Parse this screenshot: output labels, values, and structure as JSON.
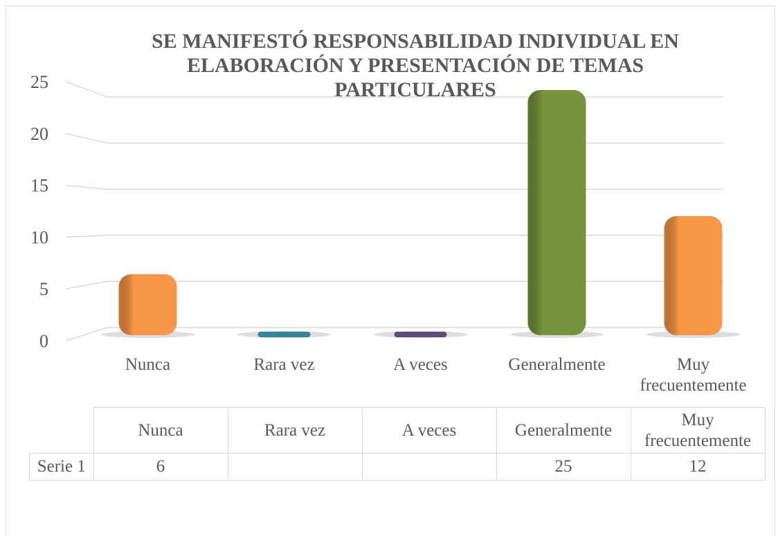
{
  "chart_data": {
    "type": "bar",
    "title": "SE MANIFESTÓ RESPONSABILIDAD INDIVIDUAL EN ELABORACIÓN Y PRESENTACIÓN DE TEMAS PARTICULARES",
    "categories": [
      "Nunca",
      "Rara vez",
      "A veces",
      "Generalmente",
      "Muy frecuentemente"
    ],
    "series": [
      {
        "name": "Serie 1",
        "values": [
          6,
          null,
          null,
          25,
          12
        ],
        "colors": [
          "#f79646",
          "#31859c",
          "#604a7b",
          "#77933c",
          "#f79646"
        ]
      }
    ],
    "ylim": [
      0,
      25
    ],
    "yticks": [
      0,
      5,
      10,
      15,
      20,
      25
    ],
    "grid": true
  }
}
